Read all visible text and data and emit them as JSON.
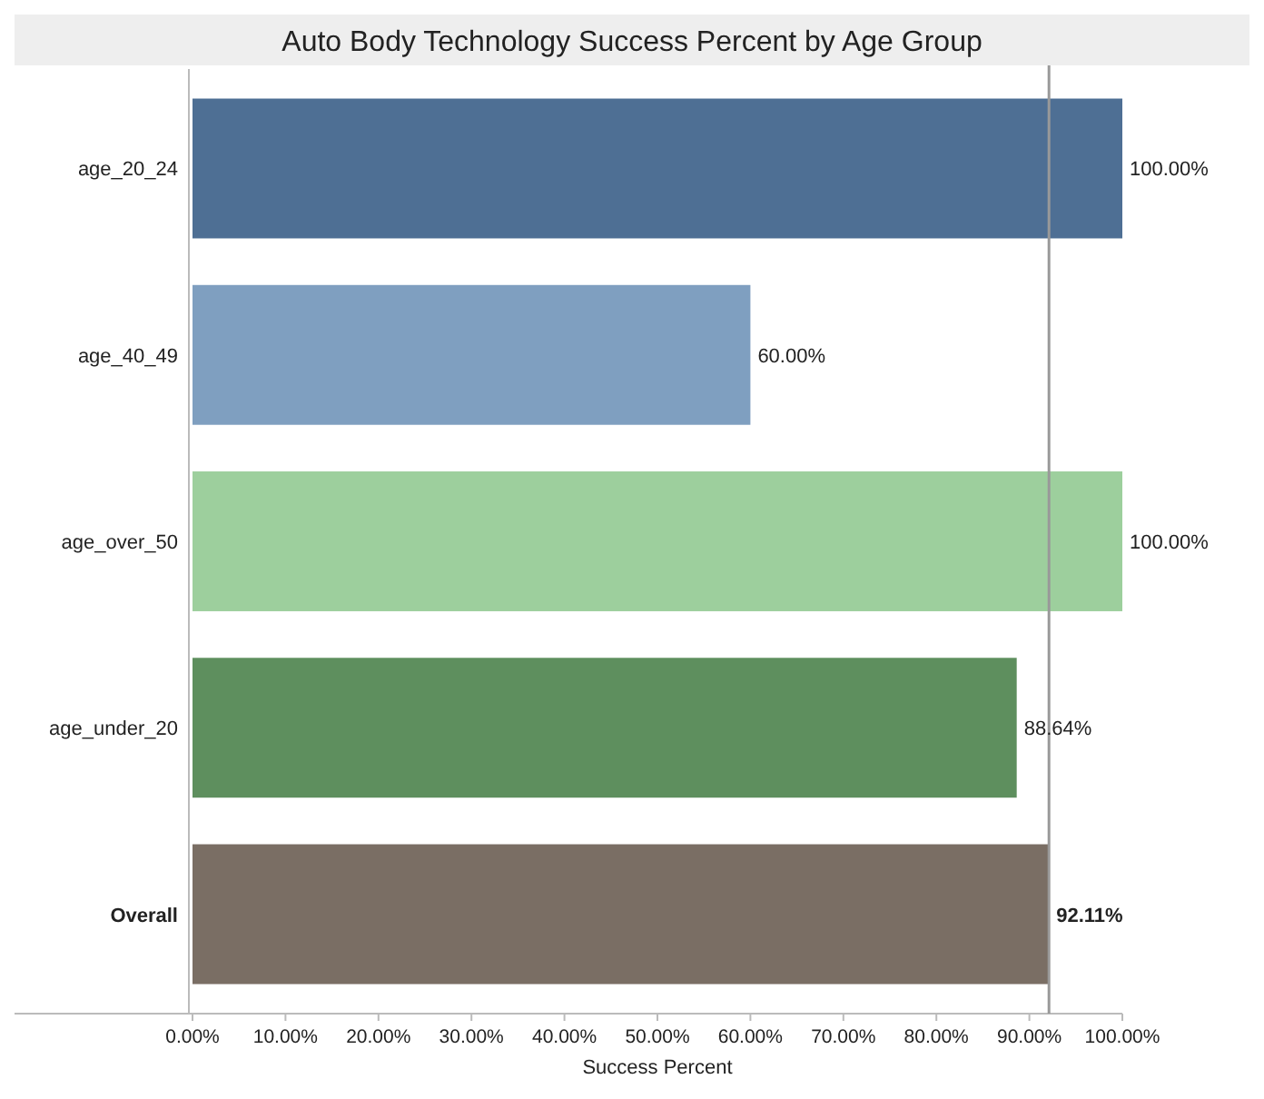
{
  "chart_data": {
    "type": "bar",
    "orientation": "horizontal",
    "title": "Auto Body Technology Success Percent by Age Group",
    "xlabel": "Success Percent",
    "categories": [
      "age_20_24",
      "age_40_49",
      "age_over_50",
      "age_under_20",
      "Overall"
    ],
    "values": [
      100,
      60,
      100,
      88.64,
      92.11
    ],
    "colors": [
      "#4e6f94",
      "#7f9fc0",
      "#9dcf9d",
      "#5e8f5e",
      "#7a6e64"
    ],
    "value_labels": [
      "100.00%",
      "60.00%",
      "100.00%",
      "88.64%",
      "92.11%"
    ],
    "xlim": [
      0,
      100
    ],
    "xticks": [
      {
        "value": 0,
        "label": "0.00%"
      },
      {
        "value": 10,
        "label": "10.00%"
      },
      {
        "value": 20,
        "label": "20.00%"
      },
      {
        "value": 30,
        "label": "30.00%"
      },
      {
        "value": 40,
        "label": "40.00%"
      },
      {
        "value": 50,
        "label": "50.00%"
      },
      {
        "value": 60,
        "label": "60.00%"
      },
      {
        "value": 70,
        "label": "70.00%"
      },
      {
        "value": 80,
        "label": "80.00%"
      },
      {
        "value": 90,
        "label": "90.00%"
      },
      {
        "value": 100,
        "label": "100.00%"
      }
    ],
    "ref_lines": [
      {
        "axis": "x",
        "value": 92.11,
        "color": "#999999"
      }
    ]
  }
}
